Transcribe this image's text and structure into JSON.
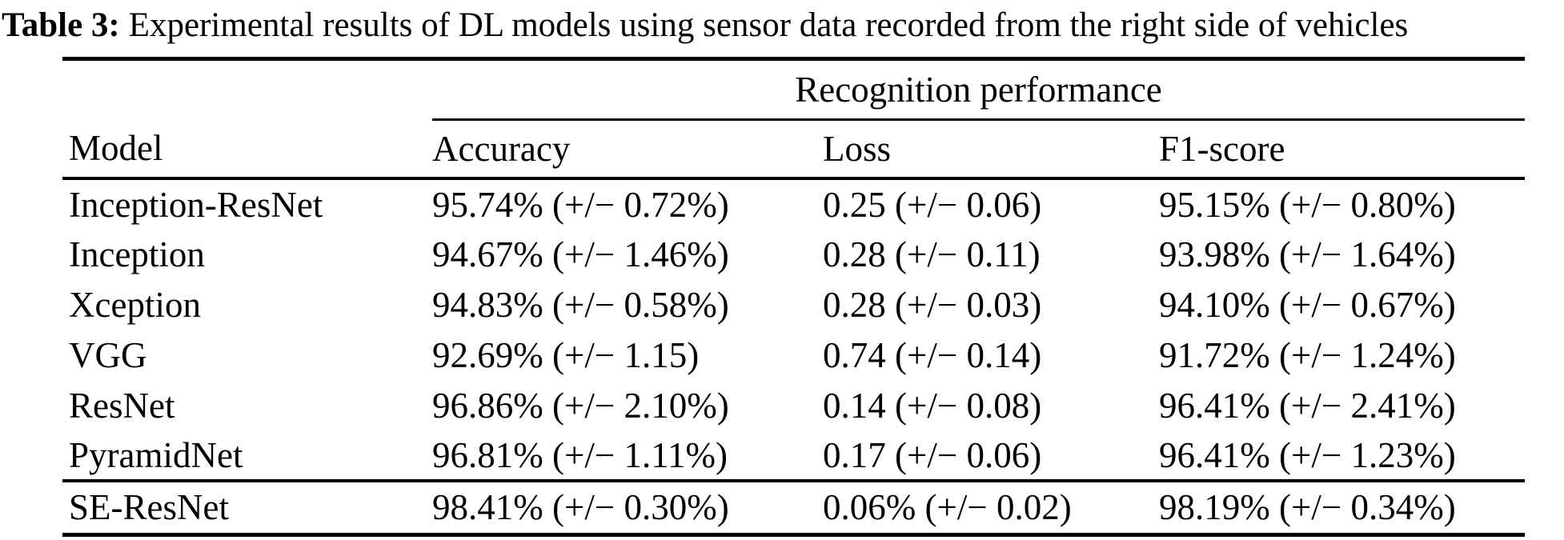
{
  "caption": {
    "label": "Table 3:",
    "text": "Experimental results of DL models using sensor data recorded from the right side of vehicles"
  },
  "table": {
    "group_header": "Recognition performance",
    "columns": [
      "Model",
      "Accuracy",
      "Loss",
      "F1-score"
    ],
    "rows": [
      {
        "model": "Inception-ResNet",
        "accuracy": "95.74% (+/− 0.72%)",
        "loss": "0.25 (+/− 0.06)",
        "f1_score": "95.15% (+/− 0.80%)"
      },
      {
        "model": "Inception",
        "accuracy": "94.67% (+/− 1.46%)",
        "loss": "0.28 (+/− 0.11)",
        "f1_score": "93.98% (+/− 1.64%)"
      },
      {
        "model": "Xception",
        "accuracy": "94.83% (+/− 0.58%)",
        "loss": "0.28 (+/− 0.03)",
        "f1_score": "94.10% (+/− 0.67%)"
      },
      {
        "model": "VGG",
        "accuracy": "92.69% (+/− 1.15)",
        "loss": "0.74 (+/− 0.14)",
        "f1_score": "91.72% (+/− 1.24%)"
      },
      {
        "model": "ResNet",
        "accuracy": "96.86% (+/− 2.10%)",
        "loss": "0.14 (+/− 0.08)",
        "f1_score": "96.41% (+/− 2.41%)"
      },
      {
        "model": "PyramidNet",
        "accuracy": "96.81% (+/− 1.11%)",
        "loss": "0.17 (+/− 0.06)",
        "f1_score": "96.41% (+/− 1.23%)"
      },
      {
        "model": "SE-ResNet",
        "accuracy": "98.41% (+/− 0.30%)",
        "loss": "0.06% (+/− 0.02)",
        "f1_score": "98.19% (+/− 0.34%)"
      }
    ]
  }
}
